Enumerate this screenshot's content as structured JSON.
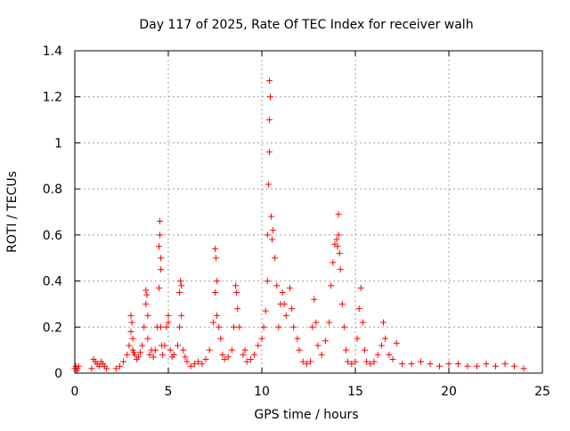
{
  "chart_data": {
    "type": "scatter",
    "title": "Day 117 of 2025, Rate Of TEC Index for receiver walh",
    "xlabel": "GPS time / hours",
    "ylabel": "ROTI / TECUs",
    "xlim": [
      0,
      25
    ],
    "ylim": [
      0,
      1.4
    ],
    "xticks": [
      0,
      5,
      10,
      15,
      20,
      25
    ],
    "yticks": [
      0,
      0.2,
      0.4,
      0.6,
      0.8,
      1,
      1.2,
      1.4
    ],
    "xtick_labels": [
      "0",
      "5",
      "10",
      "15",
      "20",
      "25"
    ],
    "ytick_labels": [
      "0",
      "0.2",
      "0.4",
      "0.6",
      "0.8",
      "1",
      "1.2",
      "1.4"
    ],
    "grid": true,
    "marker": "+",
    "color": "#ff0000",
    "series": [
      {
        "x": [
          0.0,
          0.05,
          0.1,
          0.15,
          0.2,
          0.9,
          1.0,
          1.1,
          1.2,
          1.3,
          1.4,
          1.5,
          1.6,
          1.7,
          2.2,
          2.4,
          2.6,
          2.8,
          2.9,
          3.0,
          3.0,
          3.05,
          3.1,
          3.1,
          3.15,
          3.2,
          3.3,
          3.4,
          3.5,
          3.6,
          3.7,
          3.8,
          3.8,
          3.85,
          3.9,
          3.9,
          4.0,
          4.1,
          4.2,
          4.3,
          4.4,
          4.5,
          4.5,
          4.55,
          4.55,
          4.6,
          4.6,
          4.6,
          4.65,
          4.7,
          4.8,
          4.9,
          5.0,
          5.0,
          5.1,
          5.2,
          5.3,
          5.5,
          5.6,
          5.6,
          5.65,
          5.7,
          5.7,
          5.8,
          5.9,
          6.0,
          6.2,
          6.4,
          6.6,
          6.8,
          7.0,
          7.2,
          7.4,
          7.5,
          7.5,
          7.55,
          7.6,
          7.6,
          7.7,
          7.8,
          7.9,
          8.0,
          8.2,
          8.4,
          8.5,
          8.6,
          8.65,
          8.7,
          8.8,
          9.0,
          9.1,
          9.2,
          9.4,
          9.6,
          9.8,
          10.0,
          10.1,
          10.2,
          10.3,
          10.3,
          10.35,
          10.4,
          10.4,
          10.4,
          10.45,
          10.5,
          10.55,
          10.6,
          10.7,
          10.8,
          10.9,
          11.0,
          11.1,
          11.2,
          11.3,
          11.5,
          11.6,
          11.7,
          11.9,
          12.0,
          12.2,
          12.4,
          12.6,
          12.7,
          12.8,
          12.9,
          13.0,
          13.2,
          13.4,
          13.6,
          13.7,
          13.8,
          13.9,
          14.0,
          14.05,
          14.1,
          14.1,
          14.15,
          14.2,
          14.3,
          14.4,
          14.5,
          14.6,
          14.8,
          15.0,
          15.1,
          15.2,
          15.3,
          15.4,
          15.5,
          15.6,
          15.8,
          16.0,
          16.2,
          16.4,
          16.5,
          16.6,
          16.8,
          17.0,
          17.2,
          17.5,
          18.0,
          18.5,
          19.0,
          19.5,
          20.0,
          20.5,
          21.0,
          21.5,
          22.0,
          22.5,
          23.0,
          23.5,
          24.0
        ],
        "y": [
          0.02,
          0.03,
          0.01,
          0.02,
          0.03,
          0.02,
          0.06,
          0.05,
          0.04,
          0.03,
          0.05,
          0.04,
          0.03,
          0.02,
          0.02,
          0.03,
          0.05,
          0.08,
          0.12,
          0.18,
          0.25,
          0.22,
          0.15,
          0.1,
          0.09,
          0.08,
          0.06,
          0.07,
          0.09,
          0.12,
          0.2,
          0.3,
          0.36,
          0.34,
          0.25,
          0.15,
          0.08,
          0.1,
          0.07,
          0.1,
          0.2,
          0.37,
          0.55,
          0.66,
          0.6,
          0.5,
          0.45,
          0.2,
          0.12,
          0.08,
          0.12,
          0.2,
          0.25,
          0.22,
          0.1,
          0.07,
          0.08,
          0.12,
          0.2,
          0.35,
          0.4,
          0.38,
          0.25,
          0.1,
          0.07,
          0.05,
          0.03,
          0.04,
          0.05,
          0.04,
          0.06,
          0.1,
          0.22,
          0.35,
          0.54,
          0.5,
          0.4,
          0.25,
          0.2,
          0.15,
          0.08,
          0.06,
          0.07,
          0.1,
          0.2,
          0.38,
          0.35,
          0.28,
          0.2,
          0.08,
          0.1,
          0.05,
          0.06,
          0.08,
          0.12,
          0.15,
          0.2,
          0.27,
          0.4,
          0.6,
          0.82,
          0.96,
          1.1,
          1.27,
          1.2,
          0.68,
          0.58,
          0.62,
          0.5,
          0.38,
          0.2,
          0.3,
          0.35,
          0.3,
          0.25,
          0.37,
          0.28,
          0.2,
          0.15,
          0.1,
          0.05,
          0.04,
          0.05,
          0.2,
          0.32,
          0.22,
          0.12,
          0.08,
          0.14,
          0.22,
          0.38,
          0.48,
          0.56,
          0.58,
          0.55,
          0.69,
          0.6,
          0.52,
          0.45,
          0.3,
          0.2,
          0.1,
          0.05,
          0.04,
          0.05,
          0.15,
          0.28,
          0.37,
          0.22,
          0.1,
          0.05,
          0.04,
          0.05,
          0.08,
          0.12,
          0.22,
          0.15,
          0.08,
          0.06,
          0.13,
          0.04,
          0.04,
          0.05,
          0.04,
          0.03,
          0.04,
          0.04,
          0.03,
          0.03,
          0.04,
          0.03,
          0.04,
          0.03,
          0.02
        ]
      }
    ]
  }
}
